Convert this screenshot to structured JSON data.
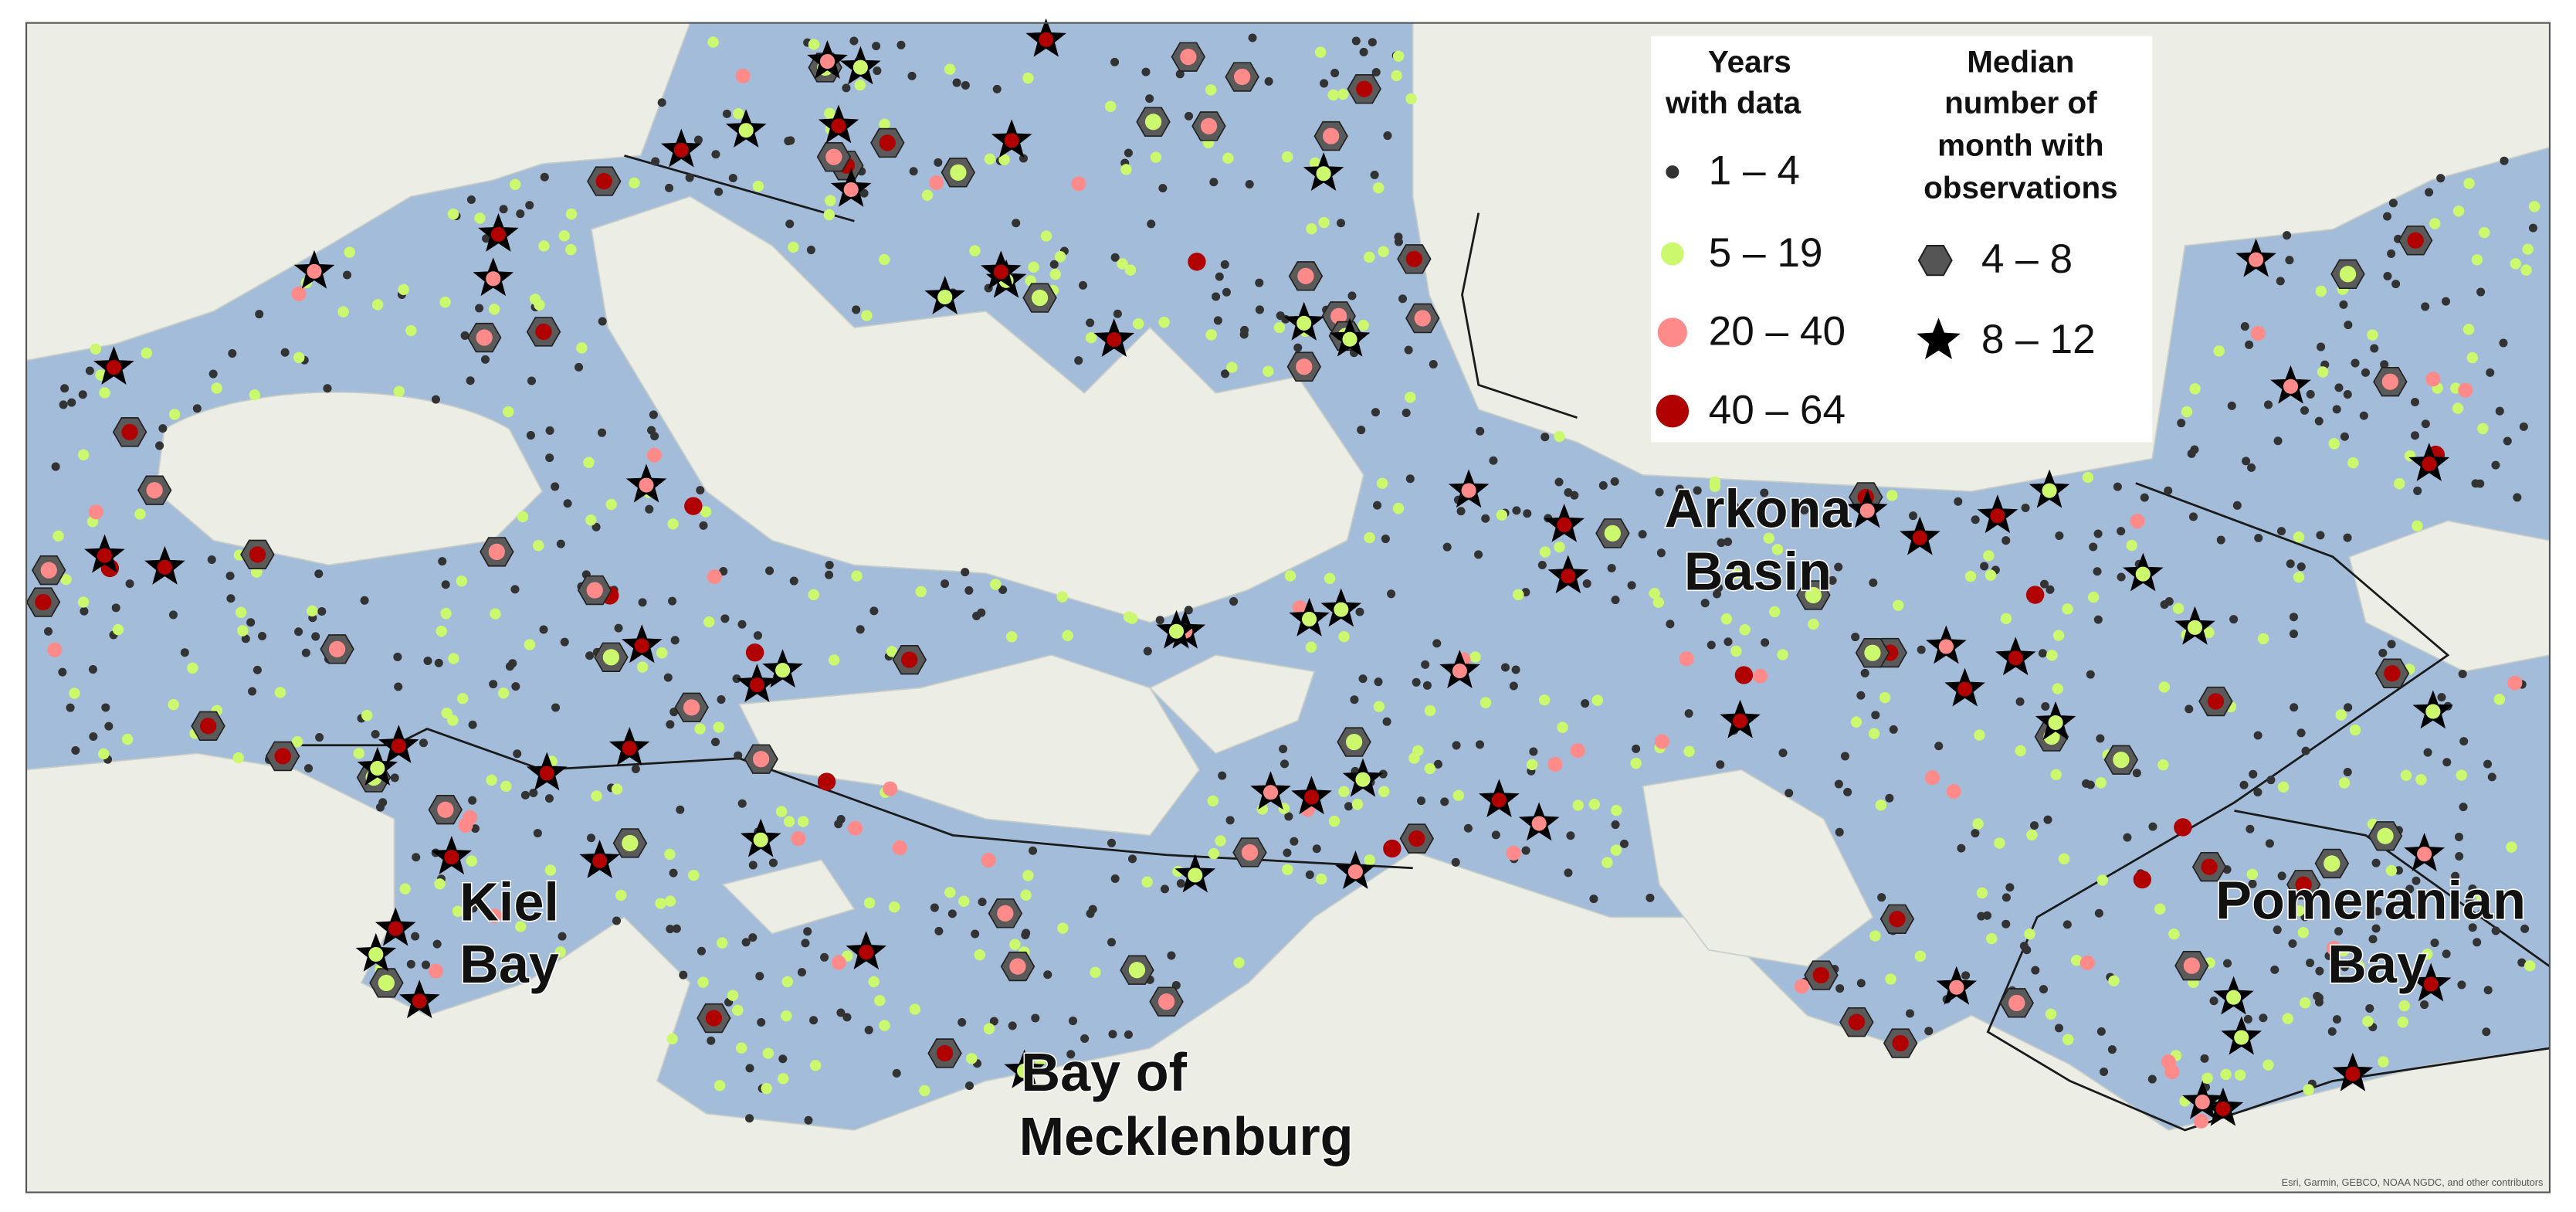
{
  "map": {
    "labels": [
      {
        "lines": [
          "Kiel",
          "Bay"
        ]
      },
      {
        "lines": [
          "Arkona",
          "Basin"
        ]
      },
      {
        "lines": [
          "Bay of",
          "Mecklenburg"
        ]
      },
      {
        "lines": [
          "Pomeranian",
          "Bay"
        ]
      }
    ],
    "legend": {
      "years": {
        "title": [
          "Years",
          "with data"
        ],
        "items": [
          "1 – 4",
          "5 – 19",
          "20 – 40",
          "40 – 64"
        ]
      },
      "months": {
        "title": [
          "Median",
          "number of",
          "month with",
          "observations"
        ],
        "items": [
          "4 – 8",
          "8 – 12"
        ]
      }
    },
    "attribution": "Esri, Garmin, GEBCO, NOAA NGDC, and other contributors"
  }
}
